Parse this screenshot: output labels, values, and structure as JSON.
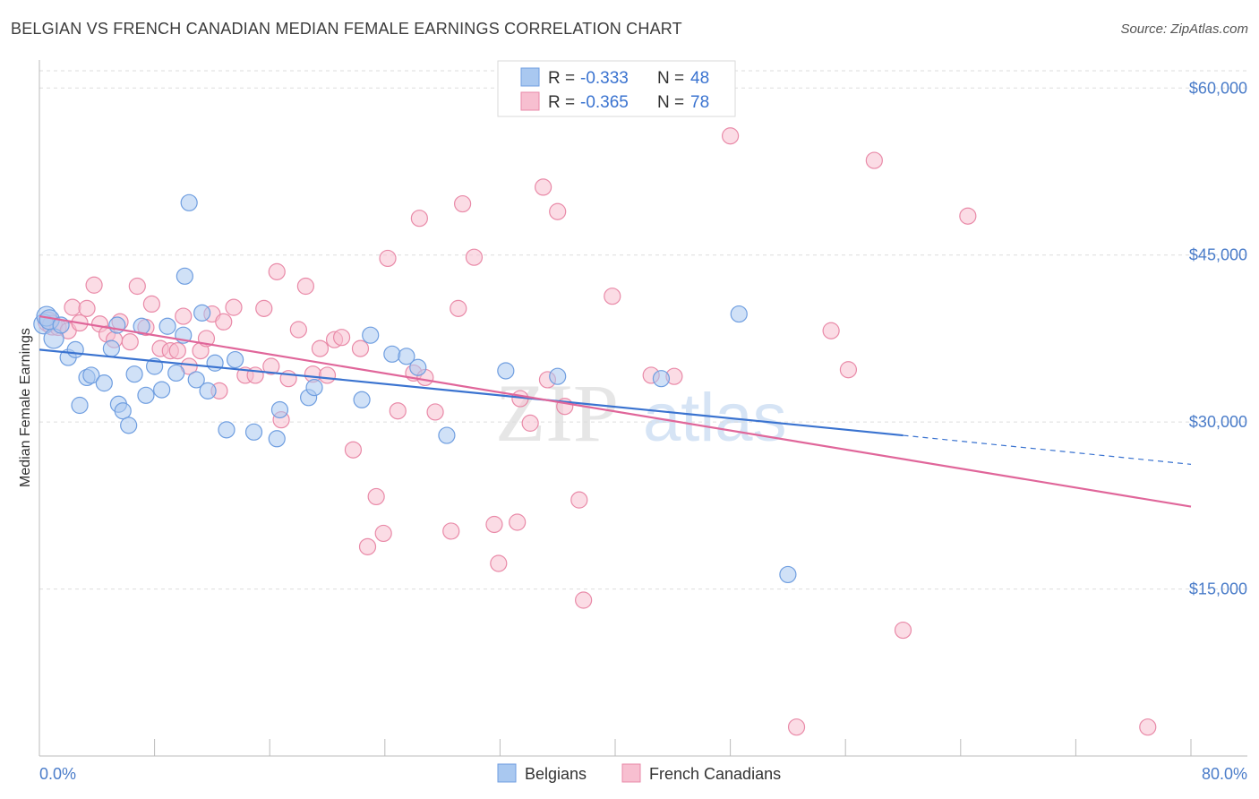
{
  "header": {
    "title": "BELGIAN VS FRENCH CANADIAN MEDIAN FEMALE EARNINGS CORRELATION CHART",
    "source": "Source: ZipAtlas.com"
  },
  "legend_top": {
    "rows": [
      {
        "r_label": "R = ",
        "r_value": "-0.333",
        "n_label": "N = ",
        "n_value": "48"
      },
      {
        "r_label": "R = ",
        "r_value": "-0.365",
        "n_label": "N = ",
        "n_value": "78"
      }
    ]
  },
  "legend_bottom": {
    "items": [
      "Belgians",
      "French Canadians"
    ]
  },
  "watermark": {
    "zip": "ZIP",
    "atlas": "atlas"
  },
  "colors": {
    "belgians_fill": "#a9c8f0",
    "belgians_stroke": "#6f9ee0",
    "belgians_line": "#3a73d0",
    "french_fill": "#f7bfd0",
    "french_stroke": "#e98aa8",
    "french_line": "#e0669a",
    "tick_label": "#4a7cc9",
    "grid": "#dddddd"
  },
  "chart_data": {
    "type": "scatter",
    "title": "BELGIAN VS FRENCH CANADIAN MEDIAN FEMALE EARNINGS CORRELATION CHART",
    "xlabel": "",
    "ylabel": "Median Female Earnings",
    "xlim": [
      0,
      80
    ],
    "ylim": [
      0,
      63000
    ],
    "x_tick_labels": [
      "0.0%",
      "80.0%"
    ],
    "y_ticks": [
      15000,
      30000,
      45000,
      60000
    ],
    "y_tick_labels": [
      "$15,000",
      "$30,000",
      "$45,000",
      "$60,000"
    ],
    "grid": true,
    "legend_position": "top-center",
    "series": [
      {
        "name": "Belgians",
        "R": -0.333,
        "N": 48,
        "trend": {
          "x_start": 0,
          "y_start": 36500,
          "x_solid_end": 60,
          "y_solid_end": 28800,
          "x_dash_end": 80,
          "y_dash_end": 26200
        },
        "points": [
          [
            0.3,
            38800
          ],
          [
            0.5,
            39500
          ],
          [
            0.7,
            39200
          ],
          [
            1.0,
            37500
          ],
          [
            1.5,
            38700
          ],
          [
            2.0,
            35800
          ],
          [
            2.5,
            36500
          ],
          [
            2.8,
            31500
          ],
          [
            3.3,
            34000
          ],
          [
            3.6,
            34200
          ],
          [
            4.5,
            33500
          ],
          [
            5.0,
            36600
          ],
          [
            5.4,
            38700
          ],
          [
            5.5,
            31600
          ],
          [
            5.8,
            31000
          ],
          [
            6.2,
            29700
          ],
          [
            6.6,
            34300
          ],
          [
            7.1,
            38600
          ],
          [
            7.4,
            32400
          ],
          [
            8.0,
            35000
          ],
          [
            8.5,
            32900
          ],
          [
            8.9,
            38600
          ],
          [
            9.5,
            34400
          ],
          [
            10.0,
            37800
          ],
          [
            10.1,
            43100
          ],
          [
            10.4,
            49700
          ],
          [
            10.9,
            33800
          ],
          [
            11.3,
            39800
          ],
          [
            11.7,
            32800
          ],
          [
            12.2,
            35300
          ],
          [
            13.0,
            29300
          ],
          [
            13.6,
            35600
          ],
          [
            14.9,
            29100
          ],
          [
            16.5,
            28500
          ],
          [
            16.7,
            31100
          ],
          [
            18.7,
            32200
          ],
          [
            19.1,
            33100
          ],
          [
            22.4,
            32000
          ],
          [
            23.0,
            37800
          ],
          [
            24.5,
            36100
          ],
          [
            25.5,
            35900
          ],
          [
            26.3,
            34900
          ],
          [
            28.3,
            28800
          ],
          [
            32.4,
            34600
          ],
          [
            36.0,
            34100
          ],
          [
            43.2,
            33900
          ],
          [
            48.6,
            39700
          ],
          [
            52.0,
            16300
          ]
        ]
      },
      {
        "name": "French Canadians",
        "R": -0.365,
        "N": 78,
        "trend": {
          "x_start": 0,
          "y_start": 39500,
          "x_end": 80,
          "y_end": 22400
        },
        "points": [
          [
            0.6,
            39000
          ],
          [
            0.9,
            38700
          ],
          [
            1.3,
            38500
          ],
          [
            2.0,
            38200
          ],
          [
            2.3,
            40300
          ],
          [
            2.8,
            38900
          ],
          [
            3.3,
            40200
          ],
          [
            3.8,
            42300
          ],
          [
            4.2,
            38800
          ],
          [
            4.7,
            37900
          ],
          [
            5.2,
            37400
          ],
          [
            5.6,
            39000
          ],
          [
            6.3,
            37200
          ],
          [
            6.8,
            42200
          ],
          [
            7.4,
            38500
          ],
          [
            7.8,
            40600
          ],
          [
            8.4,
            36600
          ],
          [
            9.1,
            36400
          ],
          [
            9.6,
            36400
          ],
          [
            10.0,
            39500
          ],
          [
            10.4,
            35000
          ],
          [
            11.2,
            36400
          ],
          [
            11.6,
            37500
          ],
          [
            12.0,
            39700
          ],
          [
            12.5,
            32800
          ],
          [
            12.8,
            39000
          ],
          [
            13.5,
            40300
          ],
          [
            14.3,
            34200
          ],
          [
            15.0,
            34200
          ],
          [
            15.6,
            40200
          ],
          [
            16.1,
            35000
          ],
          [
            16.5,
            43500
          ],
          [
            16.8,
            30200
          ],
          [
            17.3,
            33900
          ],
          [
            18.0,
            38300
          ],
          [
            18.5,
            42200
          ],
          [
            19.0,
            34300
          ],
          [
            19.5,
            36600
          ],
          [
            20.0,
            34200
          ],
          [
            20.5,
            37400
          ],
          [
            21.0,
            37600
          ],
          [
            21.8,
            27500
          ],
          [
            22.3,
            36600
          ],
          [
            22.8,
            18800
          ],
          [
            23.4,
            23300
          ],
          [
            23.9,
            20000
          ],
          [
            24.2,
            44700
          ],
          [
            24.9,
            31000
          ],
          [
            26.0,
            34400
          ],
          [
            26.4,
            48300
          ],
          [
            26.8,
            34000
          ],
          [
            27.5,
            30900
          ],
          [
            28.6,
            20200
          ],
          [
            29.1,
            40200
          ],
          [
            29.4,
            49600
          ],
          [
            30.2,
            44800
          ],
          [
            31.6,
            20800
          ],
          [
            31.9,
            17300
          ],
          [
            33.2,
            21000
          ],
          [
            33.4,
            32100
          ],
          [
            34.1,
            29900
          ],
          [
            35.0,
            51100
          ],
          [
            35.3,
            33800
          ],
          [
            36.0,
            48900
          ],
          [
            36.5,
            31400
          ],
          [
            37.5,
            23000
          ],
          [
            37.8,
            14000
          ],
          [
            39.8,
            41300
          ],
          [
            42.5,
            34200
          ],
          [
            44.1,
            34100
          ],
          [
            48.0,
            55700
          ],
          [
            52.6,
            2600
          ],
          [
            55.0,
            38200
          ],
          [
            56.2,
            34700
          ],
          [
            58.0,
            53500
          ],
          [
            60.0,
            11300
          ],
          [
            64.5,
            48500
          ],
          [
            77.0,
            2600
          ]
        ]
      }
    ]
  }
}
